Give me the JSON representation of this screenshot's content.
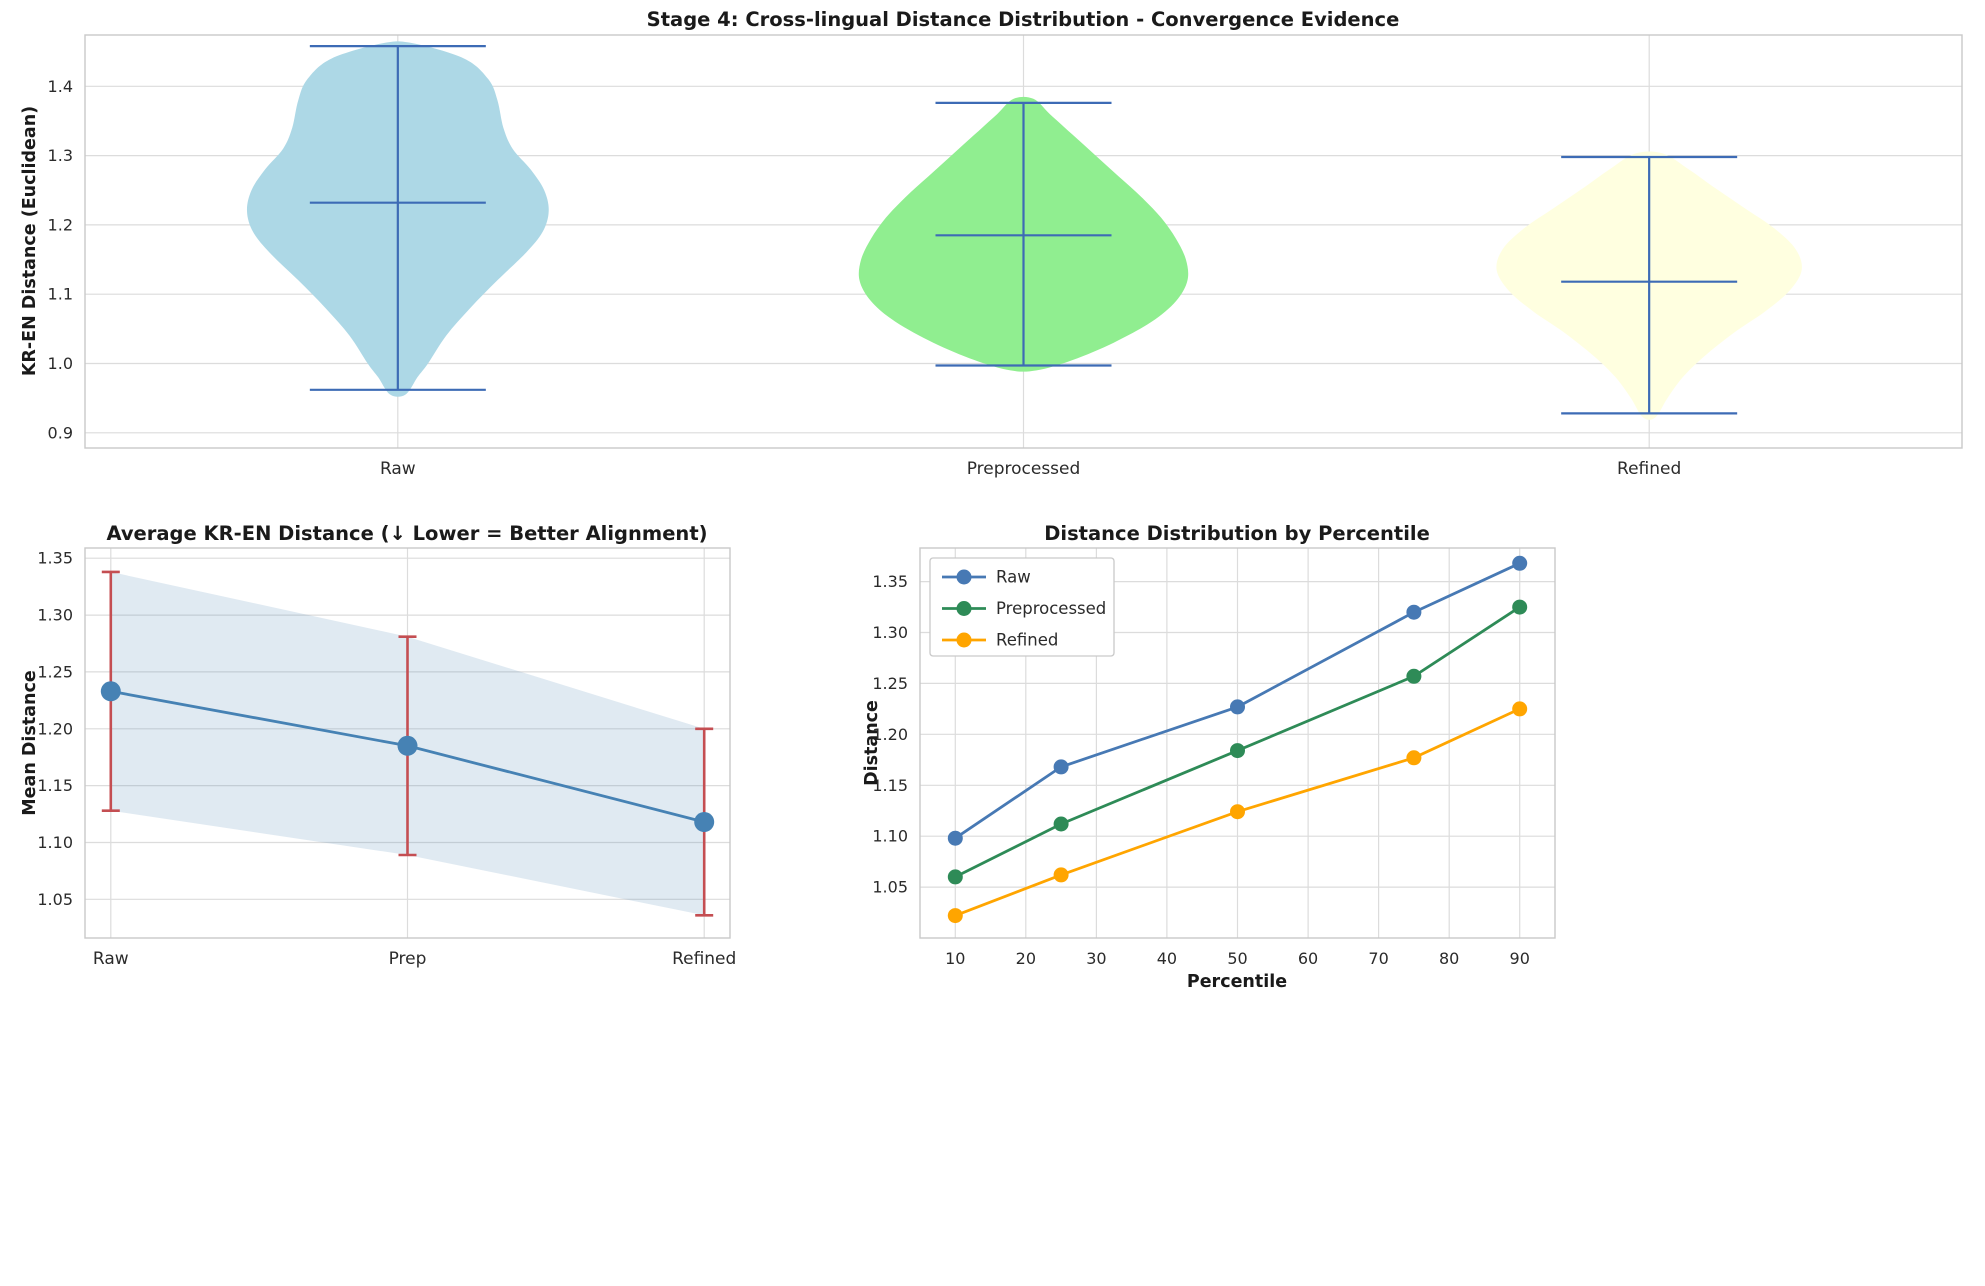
{
  "figure": {
    "background": "#ffffff",
    "grid_color": "#dcdcdc",
    "spine_color": "#c9c9c9",
    "tick_color": "#2b2b2b",
    "title_color": "#1a1a1a"
  },
  "chart_data": [
    {
      "type": "violin",
      "title": "Stage 4: Cross-lingual Distance Distribution - Convergence Evidence",
      "ylabel": "KR-EN Distance (Euclidean)",
      "categories": [
        "Raw",
        "Preprocessed",
        "Refined"
      ],
      "ylim": [
        0.878,
        1.474
      ],
      "yticks": [
        [
          0.9,
          "0.9"
        ],
        [
          1.0,
          "1.0"
        ],
        [
          1.1,
          "1.1"
        ],
        [
          1.2,
          "1.2"
        ],
        [
          1.3,
          "1.3"
        ],
        [
          1.4,
          "1.4"
        ]
      ],
      "line_color": "#3d6bb5",
      "grid": true,
      "violins": [
        {
          "label": "Raw",
          "fill": "#add8e6",
          "rel_width": 0.92,
          "stats": {
            "min": 0.962,
            "mean": 1.232,
            "max": 1.458
          },
          "profile": [
            [
              0.955,
              0.05
            ],
            [
              0.98,
              0.13
            ],
            [
              1.0,
              0.2
            ],
            [
              1.04,
              0.32
            ],
            [
              1.08,
              0.48
            ],
            [
              1.12,
              0.66
            ],
            [
              1.16,
              0.85
            ],
            [
              1.19,
              0.96
            ],
            [
              1.22,
              1.0
            ],
            [
              1.25,
              0.97
            ],
            [
              1.28,
              0.88
            ],
            [
              1.31,
              0.76
            ],
            [
              1.34,
              0.7
            ],
            [
              1.38,
              0.66
            ],
            [
              1.41,
              0.6
            ],
            [
              1.44,
              0.44
            ],
            [
              1.462,
              0.1
            ]
          ]
        },
        {
          "label": "Preprocessed",
          "fill": "#90ee90",
          "rel_width": 1.0,
          "stats": {
            "min": 0.997,
            "mean": 1.185,
            "max": 1.376
          },
          "profile": [
            [
              0.99,
              0.08
            ],
            [
              1.005,
              0.3
            ],
            [
              1.03,
              0.55
            ],
            [
              1.06,
              0.78
            ],
            [
              1.09,
              0.93
            ],
            [
              1.12,
              1.0
            ],
            [
              1.15,
              0.99
            ],
            [
              1.18,
              0.93
            ],
            [
              1.21,
              0.84
            ],
            [
              1.24,
              0.72
            ],
            [
              1.27,
              0.58
            ],
            [
              1.3,
              0.44
            ],
            [
              1.33,
              0.3
            ],
            [
              1.36,
              0.16
            ],
            [
              1.382,
              0.06
            ]
          ]
        },
        {
          "label": "Refined",
          "fill": "#ffffe0",
          "rel_width": 0.93,
          "stats": {
            "min": 0.928,
            "mean": 1.118,
            "max": 1.298
          },
          "profile": [
            [
              0.922,
              0.04
            ],
            [
              0.95,
              0.12
            ],
            [
              0.98,
              0.22
            ],
            [
              1.01,
              0.36
            ],
            [
              1.045,
              0.56
            ],
            [
              1.075,
              0.76
            ],
            [
              1.105,
              0.92
            ],
            [
              1.135,
              1.0
            ],
            [
              1.165,
              0.96
            ],
            [
              1.195,
              0.82
            ],
            [
              1.225,
              0.62
            ],
            [
              1.255,
              0.42
            ],
            [
              1.28,
              0.26
            ],
            [
              1.303,
              0.09
            ]
          ]
        }
      ]
    },
    {
      "type": "errorbar-line",
      "title": "Average KR-EN Distance (↓ Lower = Better Alignment)",
      "ylabel": "Mean Distance",
      "categories": [
        "Raw",
        "Prep",
        "Refined"
      ],
      "means": [
        1.233,
        1.185,
        1.118
      ],
      "err_low": [
        1.128,
        1.089,
        1.036
      ],
      "err_high": [
        1.338,
        1.281,
        1.2
      ],
      "ylim": [
        1.016,
        1.359
      ],
      "yticks": [
        [
          1.05,
          "1.05"
        ],
        [
          1.1,
          "1.10"
        ],
        [
          1.15,
          "1.15"
        ],
        [
          1.2,
          "1.20"
        ],
        [
          1.25,
          "1.25"
        ],
        [
          1.3,
          "1.30"
        ],
        [
          1.35,
          "1.35"
        ]
      ],
      "line_color": "#4682b4",
      "error_color": "#c44e52",
      "band_color": "rgba(70,130,180,0.17)"
    },
    {
      "type": "multi-line",
      "title": "Distance Distribution by Percentile",
      "xlabel": "Percentile",
      "ylabel": "Distance",
      "x": [
        10,
        25,
        50,
        75,
        90
      ],
      "xlim": [
        5,
        95
      ],
      "ylim": [
        1.0,
        1.383
      ],
      "xticks": [
        [
          10,
          "10"
        ],
        [
          20,
          "20"
        ],
        [
          30,
          "30"
        ],
        [
          40,
          "40"
        ],
        [
          50,
          "50"
        ],
        [
          60,
          "60"
        ],
        [
          70,
          "70"
        ],
        [
          80,
          "80"
        ],
        [
          90,
          "90"
        ]
      ],
      "yticks": [
        [
          1.05,
          "1.05"
        ],
        [
          1.1,
          "1.10"
        ],
        [
          1.15,
          "1.15"
        ],
        [
          1.2,
          "1.20"
        ],
        [
          1.25,
          "1.25"
        ],
        [
          1.3,
          "1.30"
        ],
        [
          1.35,
          "1.35"
        ]
      ],
      "series": [
        {
          "name": "Raw",
          "color": "#4779b4",
          "values": [
            1.098,
            1.168,
            1.227,
            1.32,
            1.368
          ]
        },
        {
          "name": "Preprocessed",
          "color": "#2e8b57",
          "values": [
            1.06,
            1.112,
            1.184,
            1.257,
            1.325
          ]
        },
        {
          "name": "Refined",
          "color": "#ffa500",
          "values": [
            1.022,
            1.062,
            1.124,
            1.177,
            1.225
          ]
        }
      ],
      "legend_position": "upper-left"
    }
  ]
}
